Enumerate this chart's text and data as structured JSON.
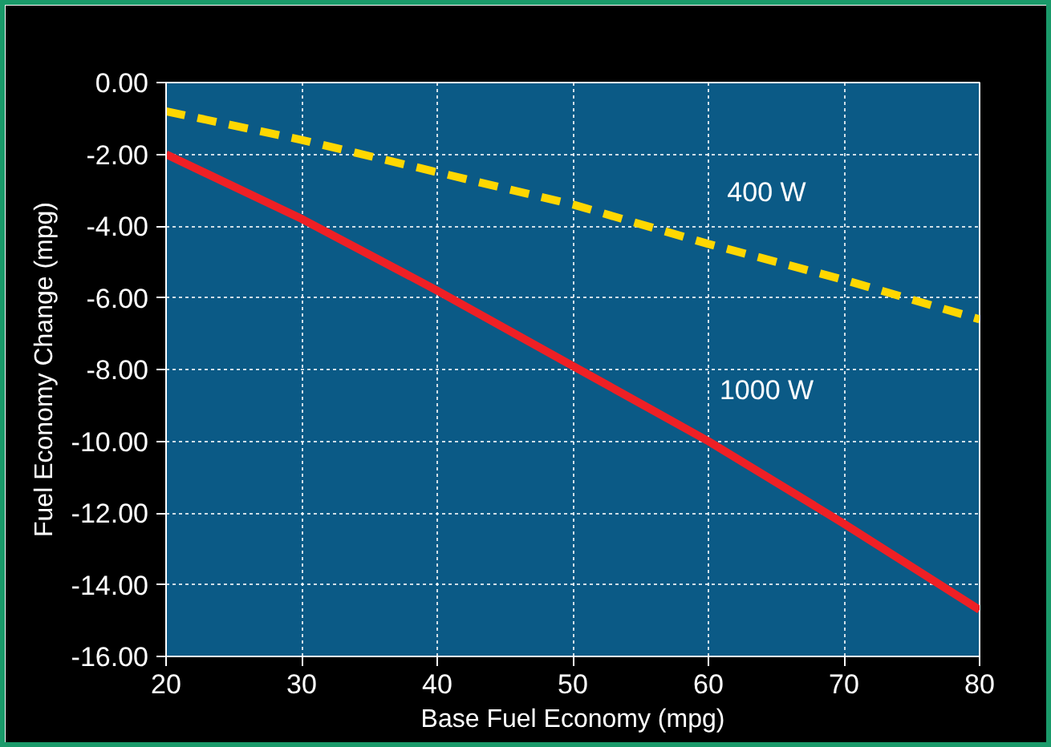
{
  "chart_data": {
    "type": "line",
    "xlabel": "Base Fuel Economy (mpg)",
    "ylabel": "Fuel Economy Change (mpg)",
    "x": [
      20,
      30,
      40,
      50,
      60,
      70,
      80
    ],
    "series": [
      {
        "name": "400 W",
        "color": "#ffd700",
        "line_style": "dashed",
        "values": [
          -0.8,
          -1.6,
          -2.5,
          -3.4,
          -4.5,
          -5.5,
          -6.6
        ]
      },
      {
        "name": "1000 W",
        "color": "#ee2025",
        "line_style": "solid",
        "values": [
          -2.0,
          -3.8,
          -5.8,
          -7.9,
          -10.0,
          -12.3,
          -14.7
        ]
      }
    ],
    "xlim": [
      20,
      80
    ],
    "xticks": [
      20,
      30,
      40,
      50,
      60,
      70,
      80
    ],
    "ylim": [
      -16,
      0
    ],
    "yticks": [
      {
        "value": 0,
        "label": "0.00"
      },
      {
        "value": -2,
        "label": "-2.00"
      },
      {
        "value": -4,
        "label": "-4.00"
      },
      {
        "value": -6,
        "label": "-6.00"
      },
      {
        "value": -8,
        "label": "-8.00"
      },
      {
        "value": -10,
        "label": "-10.00"
      },
      {
        "value": -12,
        "label": "-12.00"
      },
      {
        "value": -14,
        "label": "-14.00"
      },
      {
        "value": -16,
        "label": "-16.00"
      }
    ],
    "grid": true,
    "marker": "none"
  }
}
